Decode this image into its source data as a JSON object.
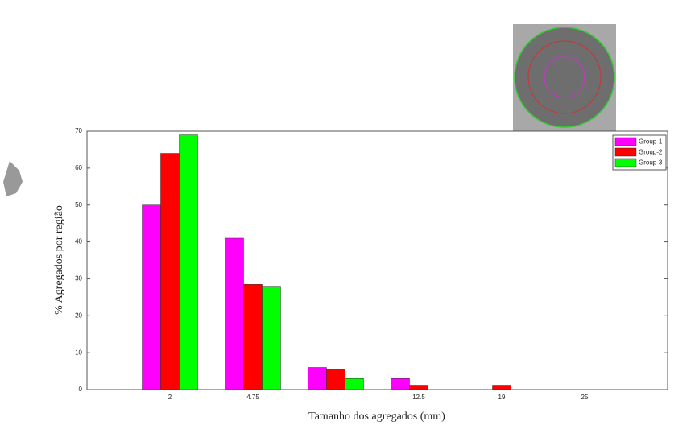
{
  "chart_data": {
    "type": "bar",
    "xlabel": "Tamanho dos agregados (mm)",
    "ylabel": "% Agregados por região",
    "categories": [
      "2",
      "4.75",
      null,
      "12.5",
      "19",
      "25"
    ],
    "series": [
      {
        "name": "Group-1",
        "color": "#ff00ff",
        "values": [
          50,
          41,
          6,
          3,
          0,
          0
        ]
      },
      {
        "name": "Group-2",
        "color": "#ff0000",
        "values": [
          64,
          28.5,
          5.5,
          1.2,
          1.2,
          0
        ]
      },
      {
        "name": "Group-3",
        "color": "#00ff00",
        "values": [
          69,
          28,
          3,
          0,
          0,
          0
        ]
      }
    ],
    "ylim": [
      0,
      70
    ],
    "yticks": [
      0,
      10,
      20,
      30,
      40,
      50,
      60,
      70
    ],
    "legend": "upper right"
  }
}
